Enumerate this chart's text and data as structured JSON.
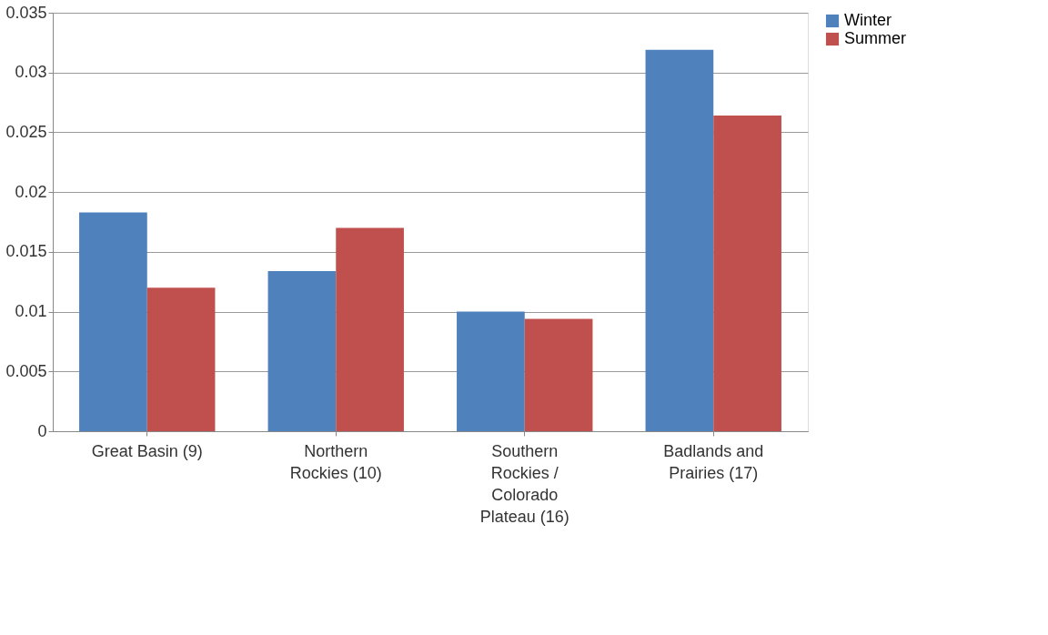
{
  "chart_data": {
    "type": "bar",
    "categories": [
      "Great Basin (9)",
      "Northern Rockies (10)",
      "Southern Rockies / Colorado Plateau (16)",
      "Badlands and Prairies (17)"
    ],
    "series": [
      {
        "name": "Winter",
        "color": "#4f81bd",
        "values": [
          0.0183,
          0.0134,
          0.01,
          0.0319
        ]
      },
      {
        "name": "Summer",
        "color": "#c0504d",
        "values": [
          0.012,
          0.017,
          0.0094,
          0.0264
        ]
      }
    ],
    "ylim": [
      0,
      0.035
    ],
    "yticks": [
      0,
      0.005,
      0.01,
      0.015,
      0.02,
      0.025,
      0.03,
      0.035
    ],
    "grid": "y",
    "legend": "right"
  }
}
